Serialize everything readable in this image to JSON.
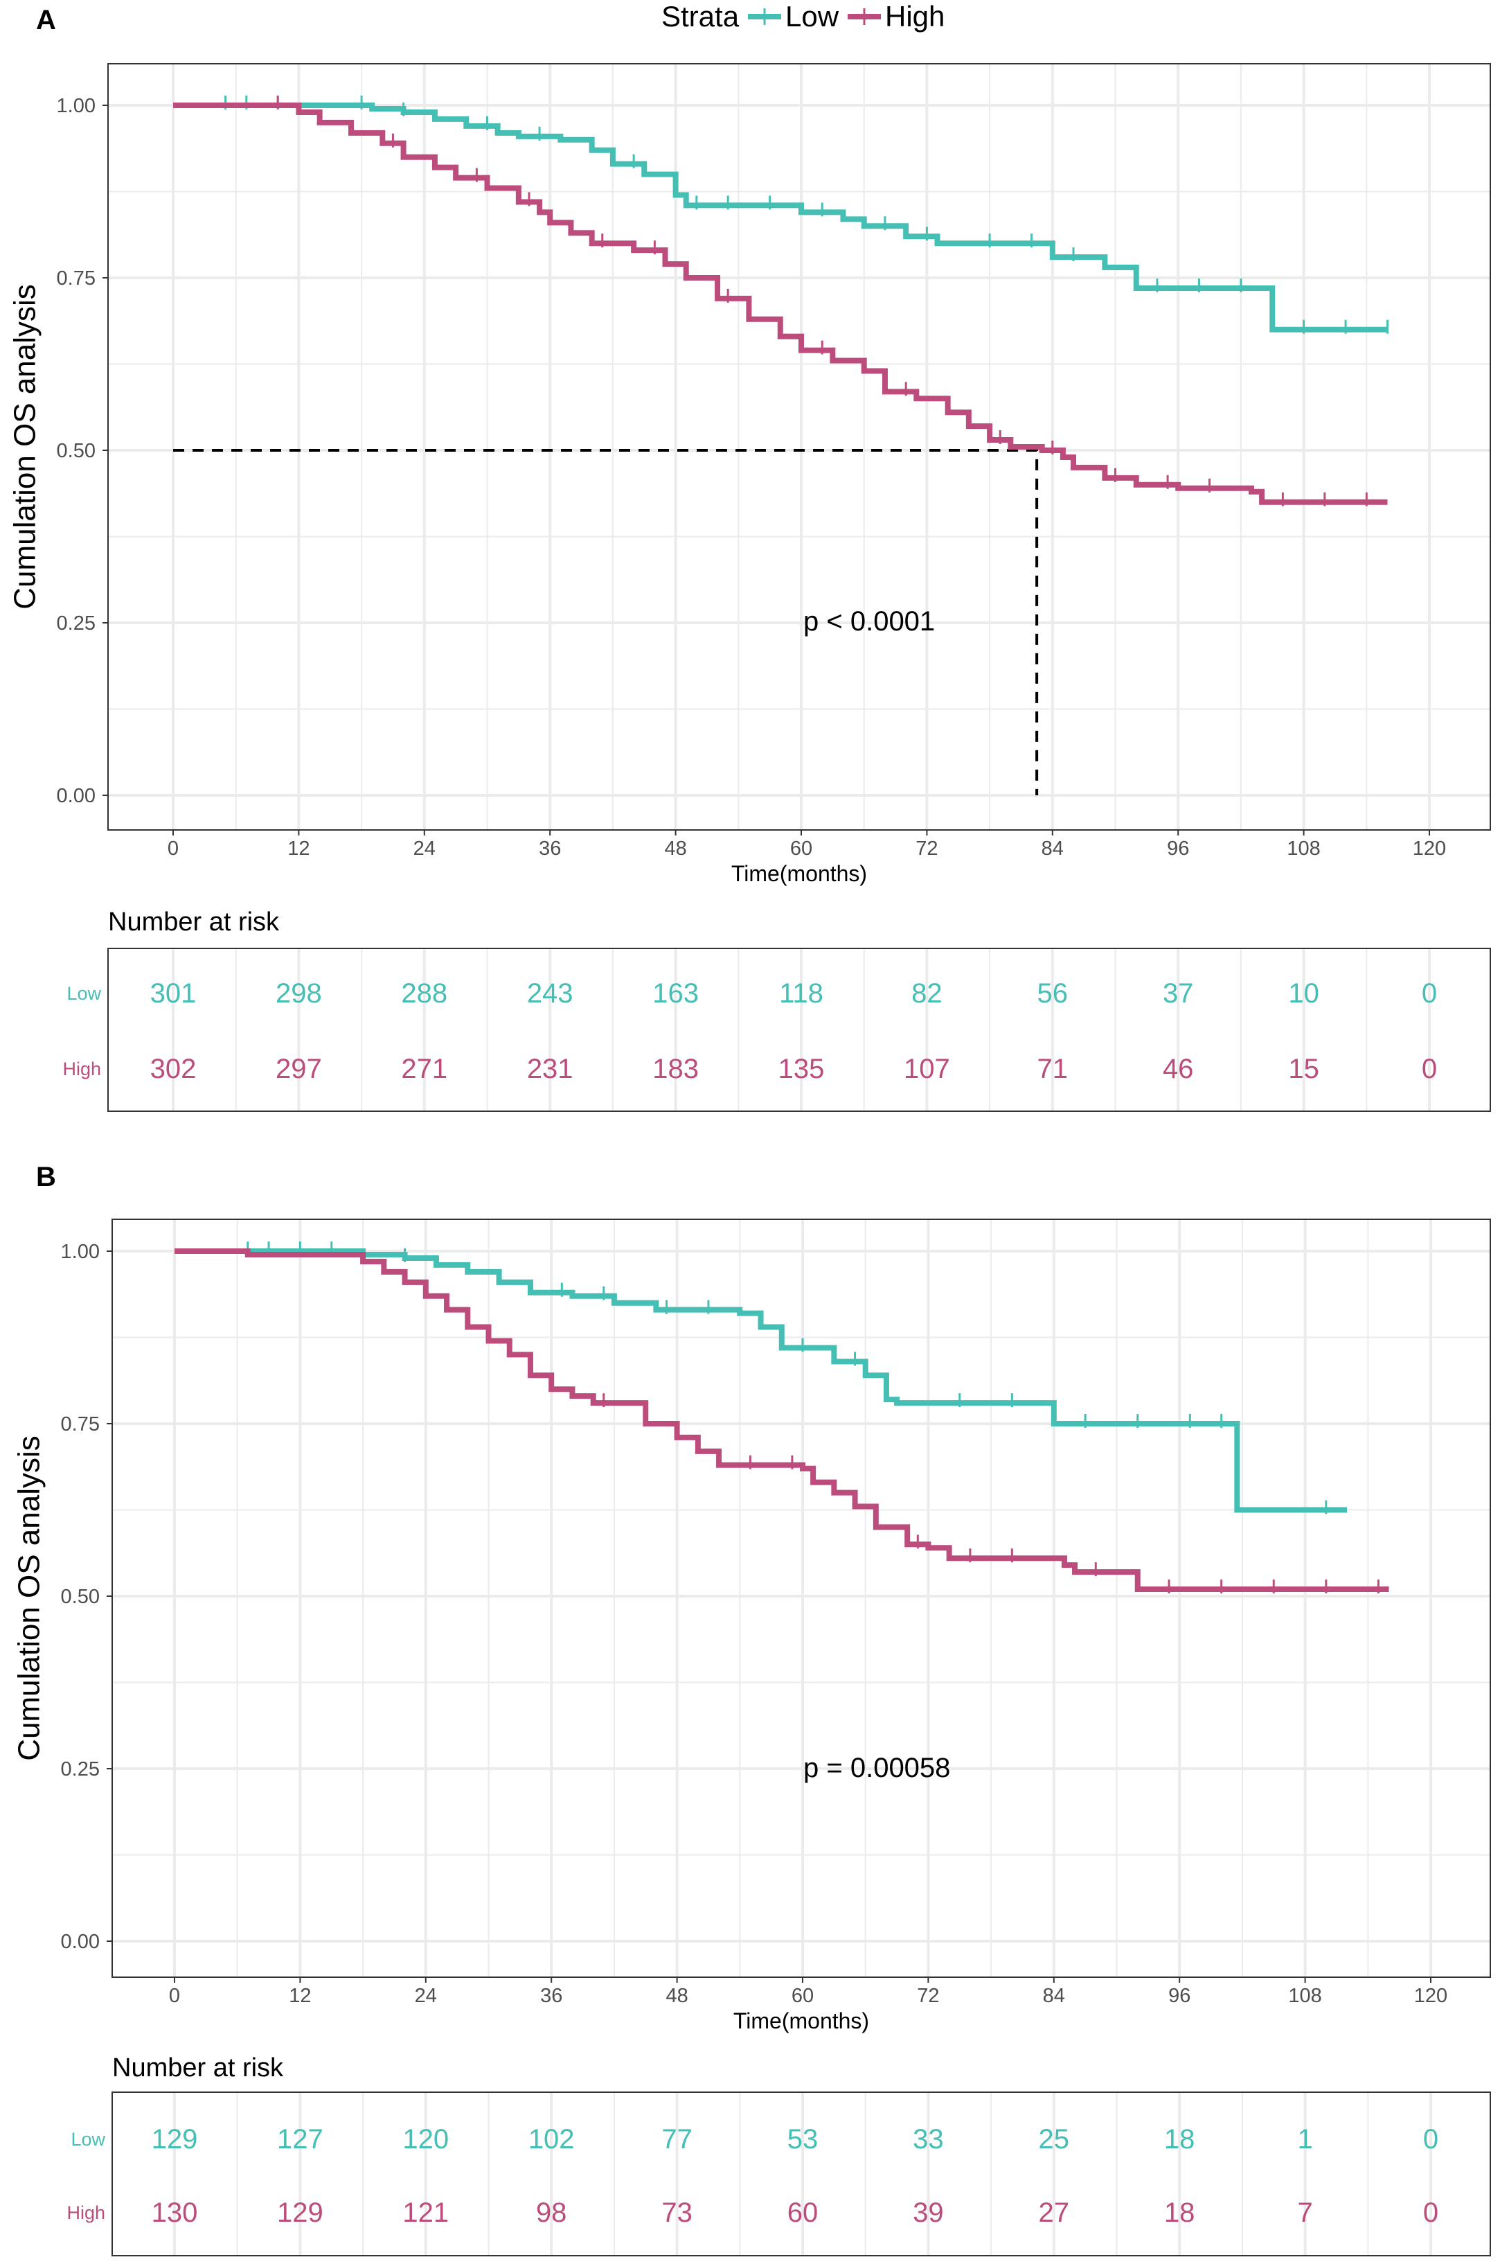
{
  "legend": {
    "title": "Strata",
    "items": [
      "Low",
      "High"
    ]
  },
  "colors": {
    "Low": "#45bfb4",
    "High": "#bc4c7c"
  },
  "chart_data": [
    {
      "panel": "A",
      "type": "line",
      "subtype": "kaplan-meier",
      "xlabel": "Time(months)",
      "ylabel": "Cumulation OS analysis",
      "xlim": [
        0,
        120
      ],
      "ylim": [
        0,
        1
      ],
      "xticks": [
        "0",
        "12",
        "24",
        "36",
        "48",
        "60",
        "72",
        "84",
        "96",
        "108",
        "120"
      ],
      "yticks": [
        "0.00",
        "0.25",
        "0.50",
        "0.75",
        "1.00"
      ],
      "pvalue": "p < 0.0001",
      "median_line": {
        "time": 82.5,
        "survival": 0.5
      },
      "series": [
        {
          "name": "Low",
          "points": [
            [
              0,
              1
            ],
            [
              17,
              1
            ],
            [
              19,
              0.995
            ],
            [
              22,
              0.99
            ],
            [
              25,
              0.98
            ],
            [
              28,
              0.97
            ],
            [
              31,
              0.96
            ],
            [
              33,
              0.955
            ],
            [
              37,
              0.95
            ],
            [
              40,
              0.935
            ],
            [
              42,
              0.915
            ],
            [
              45,
              0.9
            ],
            [
              48,
              0.87
            ],
            [
              49,
              0.855
            ],
            [
              56,
              0.855
            ],
            [
              60,
              0.845
            ],
            [
              64,
              0.835
            ],
            [
              66,
              0.825
            ],
            [
              70,
              0.81
            ],
            [
              73,
              0.8
            ],
            [
              84,
              0.78
            ],
            [
              89,
              0.765
            ],
            [
              92,
              0.735
            ],
            [
              105,
              0.675
            ],
            [
              116,
              0.675
            ]
          ],
          "censor": [
            5,
            7,
            10,
            18,
            22,
            30,
            35,
            44,
            50,
            53,
            57,
            62,
            68,
            72,
            78,
            82,
            86,
            94,
            98,
            102,
            108,
            112,
            116
          ]
        },
        {
          "name": "High",
          "points": [
            [
              0,
              1
            ],
            [
              11,
              1
            ],
            [
              12,
              0.99
            ],
            [
              14,
              0.975
            ],
            [
              17,
              0.96
            ],
            [
              20,
              0.945
            ],
            [
              22,
              0.925
            ],
            [
              25,
              0.91
            ],
            [
              27,
              0.895
            ],
            [
              30,
              0.88
            ],
            [
              33,
              0.86
            ],
            [
              35,
              0.845
            ],
            [
              36,
              0.83
            ],
            [
              38,
              0.815
            ],
            [
              40,
              0.8
            ],
            [
              44,
              0.79
            ],
            [
              47,
              0.77
            ],
            [
              49,
              0.75
            ],
            [
              52,
              0.72
            ],
            [
              55,
              0.69
            ],
            [
              58,
              0.665
            ],
            [
              60,
              0.645
            ],
            [
              63,
              0.63
            ],
            [
              66,
              0.615
            ],
            [
              68,
              0.585
            ],
            [
              71,
              0.575
            ],
            [
              74,
              0.555
            ],
            [
              76,
              0.535
            ],
            [
              78,
              0.515
            ],
            [
              80,
              0.505
            ],
            [
              83,
              0.5
            ],
            [
              85,
              0.49
            ],
            [
              86,
              0.475
            ],
            [
              89,
              0.46
            ],
            [
              92,
              0.45
            ],
            [
              96,
              0.445
            ],
            [
              103,
              0.44
            ],
            [
              104,
              0.425
            ],
            [
              116,
              0.425
            ]
          ],
          "censor": [
            10,
            21,
            29,
            34,
            41,
            46,
            53,
            62,
            70,
            79,
            84,
            90,
            95,
            99,
            106,
            110,
            114
          ]
        }
      ],
      "risk_table": {
        "title": "Number at risk",
        "rows": [
          {
            "name": "Low",
            "values": [
              "301",
              "298",
              "288",
              "243",
              "163",
              "118",
              "82",
              "56",
              "37",
              "10",
              "0"
            ]
          },
          {
            "name": "High",
            "values": [
              "302",
              "297",
              "271",
              "231",
              "183",
              "135",
              "107",
              "71",
              "46",
              "15",
              "0"
            ]
          }
        ]
      }
    },
    {
      "panel": "B",
      "type": "line",
      "subtype": "kaplan-meier",
      "xlabel": "Time(months)",
      "ylabel": "Cumulation OS analysis",
      "xlim": [
        0,
        120
      ],
      "ylim": [
        0,
        1
      ],
      "xticks": [
        "0",
        "12",
        "24",
        "36",
        "48",
        "60",
        "72",
        "84",
        "96",
        "108",
        "120"
      ],
      "yticks": [
        "0.00",
        "0.25",
        "0.50",
        "0.75",
        "1.00"
      ],
      "pvalue": "p = 0.00058",
      "series": [
        {
          "name": "Low",
          "points": [
            [
              0,
              1
            ],
            [
              16,
              1
            ],
            [
              18,
              0.995
            ],
            [
              22,
              0.99
            ],
            [
              25,
              0.98
            ],
            [
              28,
              0.97
            ],
            [
              31,
              0.955
            ],
            [
              34,
              0.94
            ],
            [
              38,
              0.935
            ],
            [
              42,
              0.925
            ],
            [
              46,
              0.915
            ],
            [
              54,
              0.91
            ],
            [
              56,
              0.89
            ],
            [
              58,
              0.86
            ],
            [
              63,
              0.84
            ],
            [
              66,
              0.82
            ],
            [
              68,
              0.785
            ],
            [
              69,
              0.78
            ],
            [
              84,
              0.75
            ],
            [
              101,
              0.75
            ],
            [
              101.5,
              0.625
            ],
            [
              112,
              0.625
            ]
          ],
          "censor": [
            7,
            9,
            12,
            15,
            22,
            37,
            41,
            47,
            51,
            60,
            65,
            75,
            80,
            87,
            92,
            97,
            100,
            110
          ]
        },
        {
          "name": "High",
          "points": [
            [
              0,
              1
            ],
            [
              7,
              0.995
            ],
            [
              17,
              0.995
            ],
            [
              18,
              0.985
            ],
            [
              20,
              0.97
            ],
            [
              22,
              0.955
            ],
            [
              24,
              0.935
            ],
            [
              26,
              0.915
            ],
            [
              28,
              0.89
            ],
            [
              30,
              0.87
            ],
            [
              32,
              0.85
            ],
            [
              34,
              0.82
            ],
            [
              36,
              0.8
            ],
            [
              38,
              0.79
            ],
            [
              40,
              0.78
            ],
            [
              44,
              0.78
            ],
            [
              45,
              0.75
            ],
            [
              48,
              0.73
            ],
            [
              50,
              0.71
            ],
            [
              52,
              0.69
            ],
            [
              60,
              0.685
            ],
            [
              61,
              0.665
            ],
            [
              63,
              0.65
            ],
            [
              65,
              0.63
            ],
            [
              67,
              0.6
            ],
            [
              70,
              0.575
            ],
            [
              72,
              0.57
            ],
            [
              74,
              0.555
            ],
            [
              85,
              0.545
            ],
            [
              86,
              0.535
            ],
            [
              92,
              0.51
            ],
            [
              116,
              0.51
            ]
          ],
          "censor": [
            41,
            55,
            59,
            71,
            76,
            80,
            88,
            95,
            100,
            105,
            110,
            115
          ]
        }
      ],
      "risk_table": {
        "title": "Number at risk",
        "rows": [
          {
            "name": "Low",
            "values": [
              "129",
              "127",
              "120",
              "102",
              "77",
              "53",
              "33",
              "25",
              "18",
              "1",
              "0"
            ]
          },
          {
            "name": "High",
            "values": [
              "130",
              "129",
              "121",
              "98",
              "73",
              "60",
              "39",
              "27",
              "18",
              "7",
              "0"
            ]
          }
        ]
      }
    }
  ]
}
